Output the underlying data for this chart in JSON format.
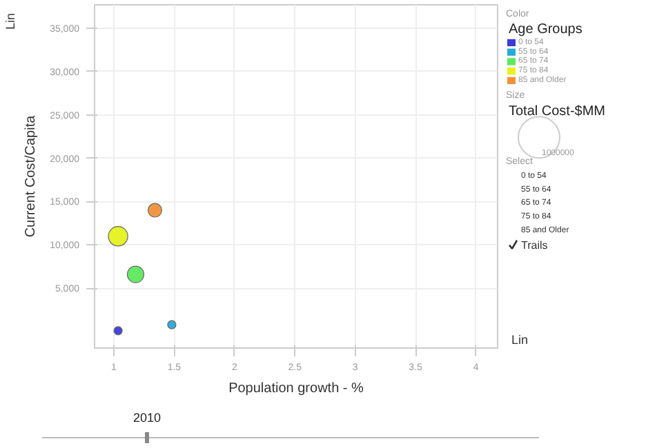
{
  "chart_data": {
    "type": "bubble",
    "xlabel": "Population growth - %",
    "ylabel": "Current Cost/Capita",
    "legend_title": "Age Groups",
    "xlim": [
      0.84,
      4.18
    ],
    "xticks": [
      1,
      1.5,
      2,
      2.5,
      3,
      3.5,
      4
    ],
    "ylim": [
      -1900,
      37700
    ],
    "yticks": [
      {
        "value": 5000,
        "label": "5,000"
      },
      {
        "value": 10000,
        "label": "10,000"
      },
      {
        "value": 15000,
        "label": "15,000"
      },
      {
        "value": 20000,
        "label": "20,000"
      },
      {
        "value": 25000,
        "label": "25,000"
      },
      {
        "value": 30000,
        "label": "30,000"
      },
      {
        "value": 35000,
        "label": "35,000"
      }
    ],
    "grid": true,
    "legend": "right",
    "size_legend": [
      1000000
    ],
    "series": [
      {
        "name": "0 to 54",
        "color": "#3b3bdb",
        "x": [
          1.035
        ],
        "values": [
          100
        ],
        "sizes": [
          40000
        ]
      },
      {
        "name": "55 to 64",
        "color": "#29a9d9",
        "x": [
          1.48
        ],
        "values": [
          800
        ],
        "sizes": [
          40000
        ]
      },
      {
        "name": "65 to 74",
        "color": "#5ee85e",
        "x": [
          1.18
        ],
        "values": [
          6600
        ],
        "sizes": [
          160000
        ]
      },
      {
        "name": "75 to 84",
        "color": "#e6f21f",
        "x": [
          1.035
        ],
        "values": [
          11000
        ],
        "sizes": [
          220000
        ]
      },
      {
        "name": "85 and Older",
        "color": "#f0913a",
        "x": [
          1.34
        ],
        "values": [
          14000
        ],
        "sizes": [
          110000
        ]
      }
    ],
    "annotations": [
      "Color",
      "Size",
      "Total Cost-$MM",
      "Select",
      "Trails",
      "Lin",
      "Lin",
      "2010"
    ]
  }
}
